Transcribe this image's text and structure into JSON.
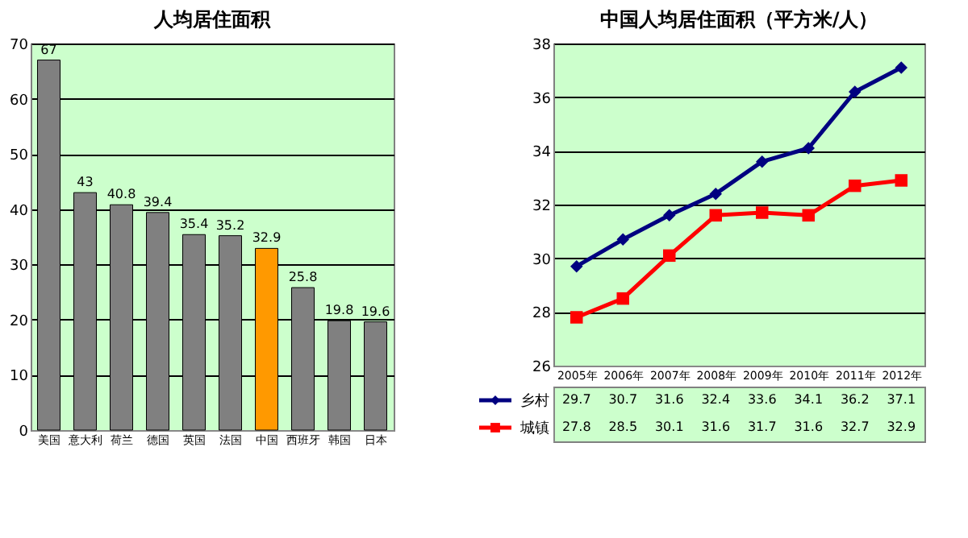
{
  "chart_data": [
    {
      "type": "bar",
      "title": "人均居住面积",
      "categories": [
        "美国",
        "意大利",
        "荷兰",
        "德国",
        "英国",
        "法国",
        "中国",
        "西班牙",
        "韩国",
        "日本"
      ],
      "values": [
        67,
        43,
        40.8,
        39.4,
        35.4,
        35.2,
        32.9,
        25.8,
        19.8,
        19.6
      ],
      "colors": [
        "#808080",
        "#808080",
        "#808080",
        "#808080",
        "#808080",
        "#808080",
        "#ff9900",
        "#808080",
        "#808080",
        "#808080"
      ],
      "ylim": [
        0,
        70
      ],
      "yticks": [
        0,
        10,
        20,
        30,
        40,
        50,
        60,
        70
      ],
      "grid": "y",
      "data_labels": true
    },
    {
      "type": "line",
      "title": "中国人均居住面积（平方米/人）",
      "categories": [
        "2005年",
        "2006年",
        "2007年",
        "2008年",
        "2009年",
        "2010年",
        "2011年",
        "2012年"
      ],
      "series": [
        {
          "name": "乡村",
          "color": "#000080",
          "marker": "diamond",
          "values": [
            29.7,
            30.7,
            31.6,
            32.4,
            33.6,
            34.1,
            36.2,
            37.1
          ]
        },
        {
          "name": "城镇",
          "color": "#ff0000",
          "marker": "square",
          "values": [
            27.8,
            28.5,
            30.1,
            31.6,
            31.7,
            31.6,
            32.7,
            32.9
          ]
        }
      ],
      "ylim": [
        26,
        38
      ],
      "yticks": [
        26,
        28,
        30,
        32,
        34,
        36,
        38
      ],
      "grid": "y",
      "data_labels": true,
      "legend": "bottom left",
      "line_style": "solid"
    }
  ]
}
